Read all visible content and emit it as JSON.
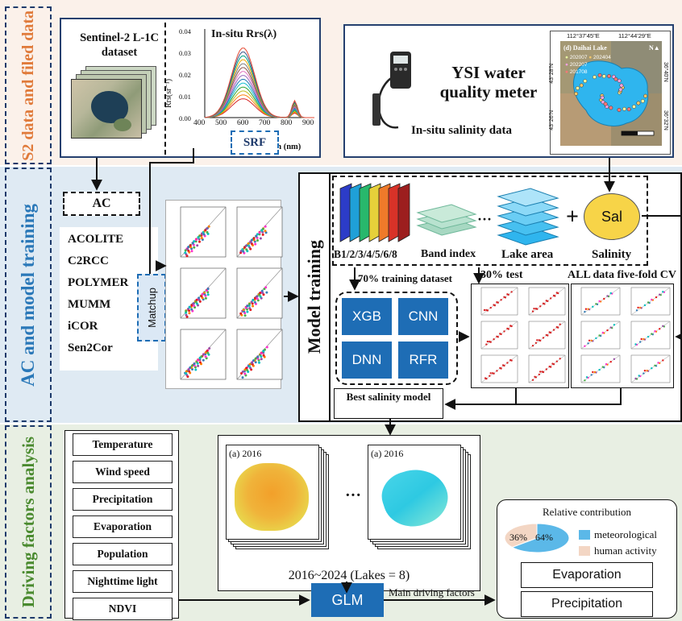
{
  "sections": {
    "s2": "S2 data and filed data",
    "ac": "AC and model training",
    "driving": "Driving factors analysis"
  },
  "sentinel": {
    "title": "Sentinel-2 L-1C dataset"
  },
  "insitu_chart": {
    "title": "In-situ Rrs(λ)",
    "ylabel": "Rrs(sr⁻¹)",
    "xlabel": "Wavelength (nm)",
    "xticks": [
      "400",
      "500",
      "600",
      "700",
      "800",
      "900"
    ],
    "yticks": [
      "0.00",
      "0.01",
      "0.02",
      "0.03",
      "0.04"
    ]
  },
  "srf": "SRF",
  "ysi": {
    "line1": "YSI water",
    "line2": "quality meter",
    "sub": "In-situ salinity data"
  },
  "map": {
    "title": "(d) Daihai Lake",
    "legend": [
      "202007",
      "202404",
      "202207",
      "201708"
    ],
    "top_ticks": [
      "112°37'45\"E",
      "112°44'29\"E"
    ],
    "left_ticks": [
      "43°28'N",
      "43°26'N"
    ],
    "right_ticks": [
      "36°40'N",
      "36°32'N"
    ]
  },
  "ac": {
    "label": "AC",
    "methods": [
      "ACOLITE",
      "C2RCC",
      "POLYMER",
      "MUMM",
      "iCOR",
      "Sen2Cor"
    ]
  },
  "matchup": "Matchup",
  "model_training": {
    "title": "Model training",
    "bands": "B1/2/3/4/5/6/8",
    "band_index": "Band index",
    "lake_area": "Lake area",
    "salinity": "Salinity",
    "sal": "Sal",
    "train": "70% training dataset",
    "test": "30% test",
    "cv": "ALL data five-fold CV",
    "models": [
      "XGB",
      "CNN",
      "DNN",
      "RFR"
    ],
    "best": "Best salinity model"
  },
  "factors": [
    "Temperature",
    "Wind speed",
    "Precipitation",
    "Evaporation",
    "Population",
    "Nighttime light",
    "NDVI"
  ],
  "maps": {
    "label_a": "(a) 2016",
    "label_b": "(a) 2016",
    "caption": "2016~2024 (Lakes = 8)"
  },
  "glm": "GLM",
  "main_driving": "Main driving factors",
  "contribution": {
    "title": "Relative contribution",
    "pct_human": "36%",
    "pct_met": "64%",
    "legend_met": "meteorological",
    "legend_human": "human activity",
    "values": {
      "meteorological": 64,
      "human": 36
    },
    "items": [
      "Evaporation",
      "Precipitation"
    ]
  },
  "colors": {
    "navy": "#25406f",
    "model_blue": "#1e6db5",
    "met": "#5bb8e8",
    "human": "#f3d6c4",
    "sal": "#f7d448"
  }
}
